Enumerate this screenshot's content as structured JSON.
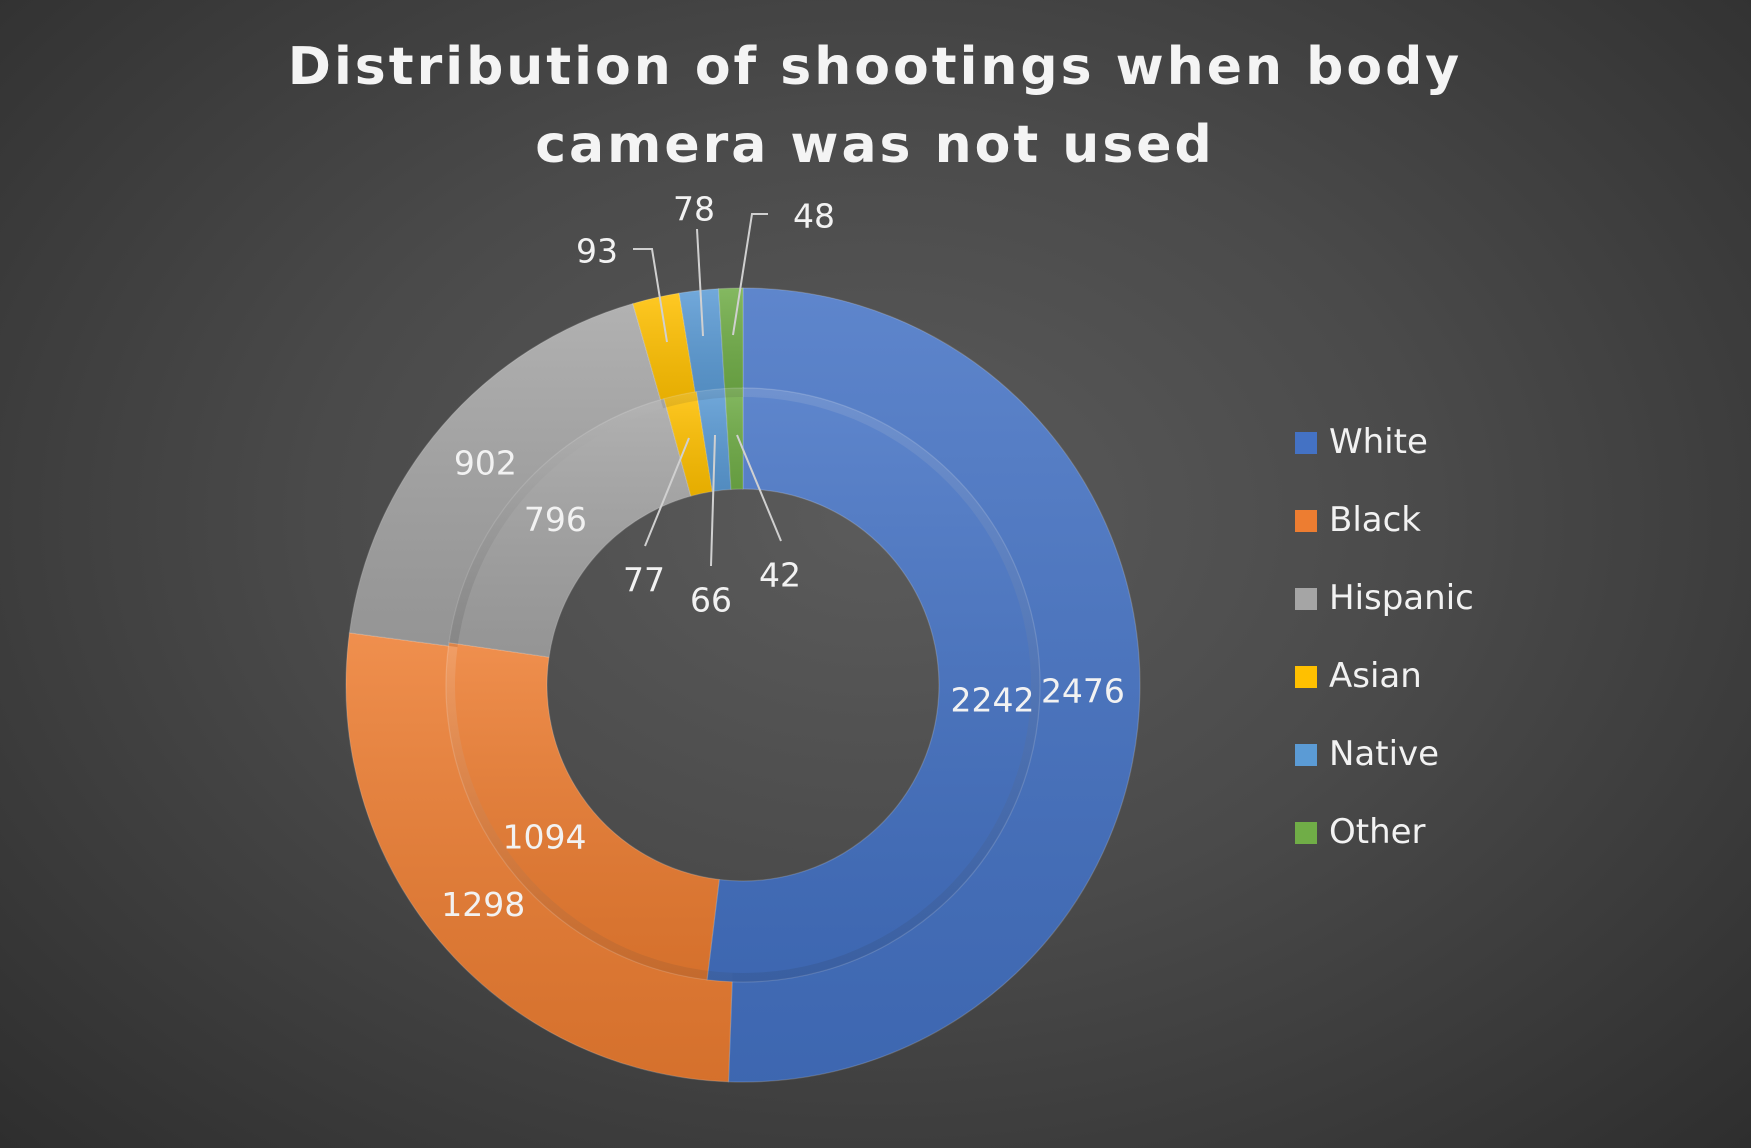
{
  "chart_data": {
    "type": "donut",
    "title": "Distribution of shootings when body camera was not used",
    "categories": [
      "White",
      "Black",
      "Hispanic",
      "Asian",
      "Native",
      "Other"
    ],
    "colors": [
      "#4472c4",
      "#ed7d31",
      "#a5a5a5",
      "#ffc000",
      "#5b9bd5",
      "#70ad47"
    ],
    "series": [
      {
        "ring": "outer",
        "values": [
          2476,
          1298,
          902,
          93,
          78,
          48
        ]
      },
      {
        "ring": "inner",
        "values": [
          2242,
          1094,
          796,
          77,
          66,
          42
        ]
      }
    ],
    "legend": {
      "position": "right"
    }
  }
}
